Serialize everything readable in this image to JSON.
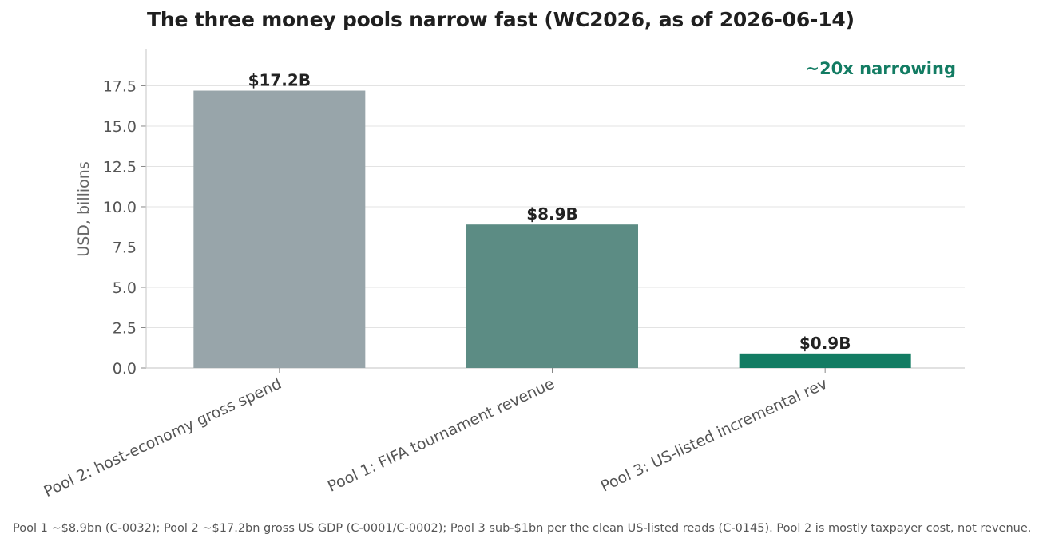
{
  "chart_data": {
    "type": "bar",
    "title": "The three money pools narrow fast (WC2026, as of 2026-06-14)",
    "ylabel": "USD, billions",
    "xlabel": "",
    "ylim": [
      0,
      19.8
    ],
    "yticks": [
      "0.0",
      "2.5",
      "5.0",
      "7.5",
      "10.0",
      "12.5",
      "15.0",
      "17.5"
    ],
    "yticks_values": [
      0,
      2.5,
      5,
      7.5,
      10,
      12.5,
      15,
      17.5
    ],
    "grid": true,
    "categories": [
      "Pool 2: host-economy gross spend",
      "Pool 1: FIFA tournament revenue",
      "Pool 3: US-listed incremental rev"
    ],
    "values": [
      17.2,
      8.9,
      0.9
    ],
    "data_labels": [
      "$17.2B",
      "$8.9B",
      "$0.9B"
    ],
    "bar_colors": [
      "#98a5aa",
      "#5c8c84",
      "#137c63"
    ],
    "annotation": "~20x narrowing",
    "annotation_color": "#137c63",
    "footnote": "Pool 1 ~$8.9bn (C-0032); Pool 2 ~$17.2bn gross US GDP (C-0001/C-0002); Pool 3 sub-$1bn per the clean US-listed reads (C-0145). Pool 2 is mostly taxpayer cost, not revenue."
  }
}
